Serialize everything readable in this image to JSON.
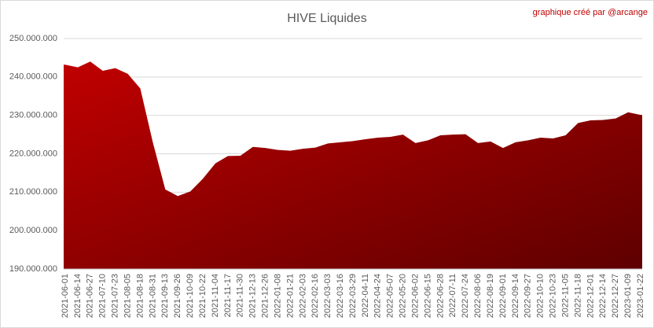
{
  "chart_data": {
    "type": "area",
    "title": "HIVE Liquides",
    "annotation": "graphique créé par @arcange",
    "categories": [
      "2021-06-01",
      "2021-06-14",
      "2021-06-27",
      "2021-07-10",
      "2021-07-23",
      "2021-08-05",
      "2021-08-18",
      "2021-08-31",
      "2021-09-13",
      "2021-09-26",
      "2021-10-09",
      "2021-10-22",
      "2021-11-04",
      "2021-11-17",
      "2021-11-30",
      "2021-12-13",
      "2021-12-26",
      "2022-01-08",
      "2022-01-21",
      "2022-02-03",
      "2022-02-16",
      "2022-03-03",
      "2022-03-16",
      "2022-03-29",
      "2022-04-11",
      "2022-04-24",
      "2022-05-07",
      "2022-05-20",
      "2022-06-02",
      "2022-06-15",
      "2022-06-28",
      "2022-07-11",
      "2022-07-24",
      "2022-08-06",
      "2022-08-19",
      "2022-09-01",
      "2022-09-14",
      "2022-09-27",
      "2022-10-10",
      "2022-10-23",
      "2022-11-05",
      "2022-11-18",
      "2022-12-01",
      "2022-12-14",
      "2022-12-27",
      "2023-01-09",
      "2023-01-22"
    ],
    "values": [
      243200000,
      242500000,
      244000000,
      241600000,
      242300000,
      240800000,
      237000000,
      223000000,
      210700000,
      209000000,
      210200000,
      213500000,
      217500000,
      219400000,
      219500000,
      221800000,
      221500000,
      221000000,
      220800000,
      221300000,
      221600000,
      222700000,
      223000000,
      223300000,
      223800000,
      224200000,
      224400000,
      225000000,
      222800000,
      223500000,
      224800000,
      225000000,
      225100000,
      222800000,
      223200000,
      221500000,
      223000000,
      223500000,
      224200000,
      224000000,
      224800000,
      228000000,
      228700000,
      228800000,
      229200000,
      230800000,
      230100000
    ],
    "color": "#c00000",
    "ylim": [
      190000000,
      250000000
    ],
    "yticks": [
      {
        "value": 190000000,
        "label": "190.000.000"
      },
      {
        "value": 200000000,
        "label": "200.000.000"
      },
      {
        "value": 210000000,
        "label": "210.000.000"
      },
      {
        "value": 220000000,
        "label": "220.000.000"
      },
      {
        "value": 230000000,
        "label": "230.000.000"
      },
      {
        "value": 240000000,
        "label": "240.000.000"
      },
      {
        "value": 250000000,
        "label": "250.000.000"
      }
    ],
    "grid": true
  }
}
